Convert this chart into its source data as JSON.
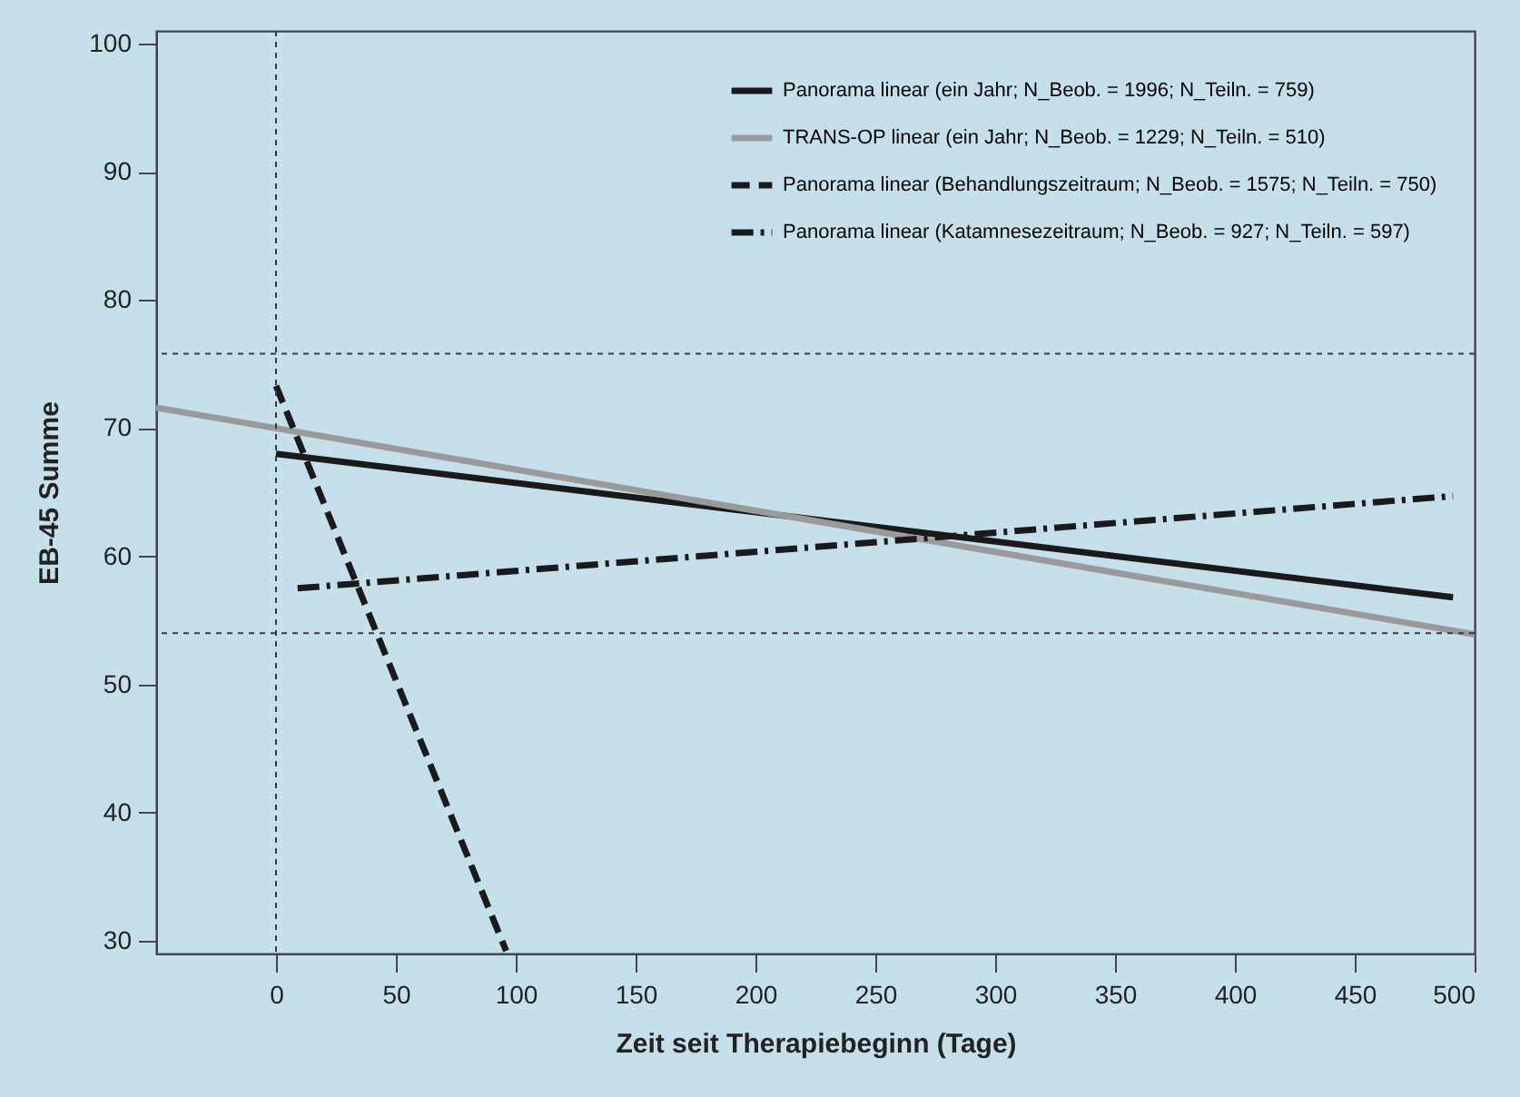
{
  "chart_data": {
    "type": "line",
    "xlabel": "Zeit seit Therapiebeginn (Tage)",
    "ylabel": "EB-45 Summe",
    "xlim": [
      -50,
      500
    ],
    "xticks": [
      0,
      50,
      100,
      150,
      200,
      250,
      300,
      350,
      400,
      450,
      500
    ],
    "ylim": [
      29,
      101
    ],
    "yticks": [
      30,
      40,
      50,
      60,
      70,
      80,
      90,
      100
    ],
    "grid": false,
    "legend": "top right",
    "marker": "none",
    "series": [
      {
        "name": "Panorama linear (ein Jahr; N_Beob. = 1996; N_Teiln. = 759)",
        "color": "#1a1a1a",
        "line_style": "solid",
        "x": [
          0,
          491
        ],
        "values": [
          68,
          56.8
        ]
      },
      {
        "name": "TRANS-OP linear (ein Jahr; N_Beob. = 1229; N_Teiln. = 510)",
        "color": "#9a9a9a",
        "line_style": "solid",
        "x": [
          -50,
          500
        ],
        "values": [
          71.6,
          53.9
        ]
      },
      {
        "name": "Panorama linear (Behandlungszeitraum; N_Beob. = 1575; N_Teiln. = 750)",
        "color": "#1a1a1a",
        "line_style": "dashed",
        "x": [
          0,
          96
        ],
        "values": [
          73.3,
          29.2
        ]
      },
      {
        "name": "Panorama linear (Katamnesezeitraum; N_Beob. = 927; N_Teiln. = 597)",
        "color": "#1a1a1a",
        "line_style": "dashdot",
        "x": [
          9,
          491
        ],
        "values": [
          57.5,
          64.7
        ]
      }
    ],
    "ref_lines": [
      {
        "axis": "y",
        "value": 75.8,
        "color": "#3a3a3a",
        "line_style": "dotted"
      },
      {
        "axis": "y",
        "value": 54,
        "color": "#3a3a3a",
        "line_style": "dotted"
      },
      {
        "axis": "x",
        "value": 0,
        "color": "#3a3a3a",
        "line_style": "dotted"
      }
    ]
  }
}
